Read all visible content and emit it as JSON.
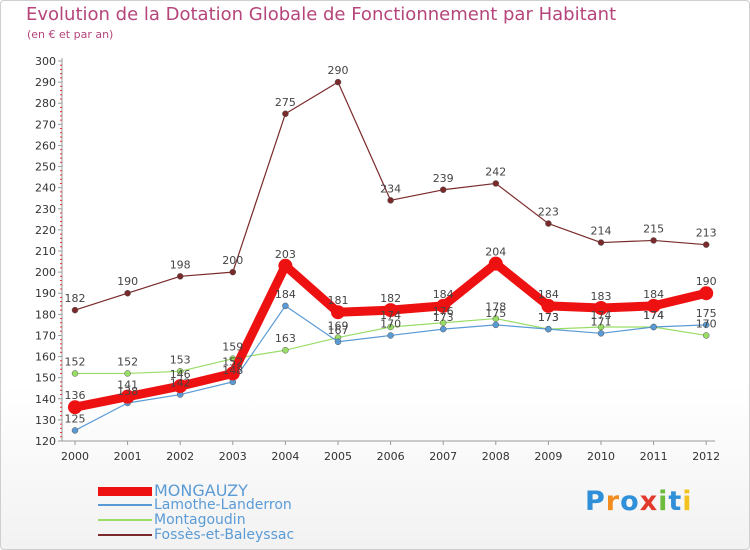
{
  "chart_data": {
    "type": "line",
    "title": "Evolution de la Dotation Globale de Fonctionnement par Habitant",
    "subtitle": "(en € et par an)",
    "xlabel": "",
    "ylabel": "",
    "x": [
      "2000",
      "2001",
      "2002",
      "2003",
      "2004",
      "2005",
      "2006",
      "2007",
      "2008",
      "2009",
      "2010",
      "2011",
      "2012"
    ],
    "ylim": [
      120,
      300
    ],
    "yticks": [
      120,
      130,
      140,
      150,
      160,
      170,
      180,
      190,
      200,
      210,
      220,
      230,
      240,
      250,
      260,
      270,
      280,
      290,
      300
    ],
    "grid": false,
    "legend": "bottom-left",
    "series": [
      {
        "name": "MONGAUZY",
        "color": "#ee1111",
        "values": [
          136,
          141,
          146,
          152,
          203,
          181,
          182,
          184,
          204,
          184,
          183,
          184,
          190
        ],
        "labels": [
          "136",
          "141",
          "146",
          "152",
          "203",
          "181",
          "182",
          "184",
          "204",
          "184",
          "183",
          "184",
          "190"
        ]
      },
      {
        "name": "Lamothe-Landerron",
        "color": "#5b9bd5",
        "values": [
          125,
          138,
          142,
          148,
          184,
          167,
          170,
          173,
          175,
          173,
          171,
          174,
          175
        ],
        "labels": [
          "125",
          "138",
          "142",
          "148",
          "184",
          "167",
          "170",
          "173",
          "175",
          "173",
          "171",
          "174",
          "175"
        ]
      },
      {
        "name": "Montagoudin",
        "color": "#99dd66",
        "values": [
          152,
          152,
          153,
          159,
          163,
          169,
          174,
          176,
          178,
          173,
          174,
          174,
          170
        ],
        "labels": [
          "152",
          "152",
          "153",
          "159",
          "163",
          "169",
          "174",
          "176",
          "178",
          "173",
          "174",
          "174",
          "170"
        ]
      },
      {
        "name": "Fossès-et-Baleyssac",
        "color": "#7a2a2a",
        "values": [
          182,
          190,
          198,
          200,
          275,
          290,
          234,
          239,
          242,
          223,
          214,
          215,
          213
        ],
        "labels": [
          "182",
          "190",
          "198",
          "200",
          "275",
          "290",
          "234",
          "239",
          "242",
          "223",
          "214",
          "215",
          "213"
        ]
      }
    ]
  },
  "logo": {
    "text": "Proxiti"
  }
}
